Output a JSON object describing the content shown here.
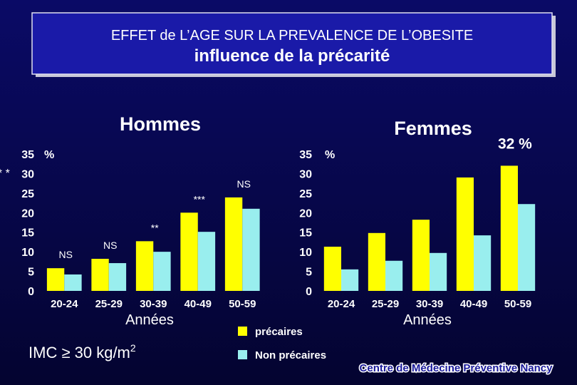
{
  "title": "EFFET de L’AGE SUR LA PREVALENCE DE L’OBESITE",
  "subtitle": "influence de la précarité",
  "criterion": {
    "text": "IMC ≥ 30 kg/m",
    "superscript": "2"
  },
  "source": "Centre de Médecine Préventive Nancy",
  "chart_data": [
    {
      "type": "bar",
      "title": "Hommes",
      "y_label": "%",
      "x_label": "Années",
      "categories": [
        "20-24",
        "25-29",
        "30-39",
        "40-49",
        "50-59"
      ],
      "series": [
        {
          "name": "précaires",
          "color": "#ffff00",
          "values": [
            5.8,
            8.2,
            12.7,
            20,
            23.9
          ]
        },
        {
          "name": "Non précaires",
          "color": "#99eeee",
          "values": [
            4.2,
            7.1,
            10,
            15.1,
            21
          ]
        }
      ],
      "significance": [
        "NS",
        "NS",
        "**",
        "***",
        "NS"
      ],
      "ylim": [
        0,
        35
      ],
      "yticks": [
        0,
        5,
        10,
        15,
        20,
        25,
        30,
        35
      ]
    },
    {
      "type": "bar",
      "title": "Femmes",
      "y_label": "%",
      "x_label": "Années",
      "categories": [
        "20-24",
        "25-29",
        "30-39",
        "40-49",
        "50-59"
      ],
      "series": [
        {
          "color": "#ffff00",
          "values": [
            11.3,
            14.8,
            18.2,
            29,
            32
          ],
          "value_labels": [
            null,
            null,
            null,
            null,
            "32 %"
          ]
        },
        {
          "color": "#99eeee",
          "values": [
            5.5,
            7.7,
            9.7,
            14.2,
            22.2
          ]
        }
      ],
      "annotation": "* * *",
      "ylim": [
        0,
        35
      ],
      "yticks": [
        0,
        5,
        10,
        15,
        20,
        25,
        30,
        35
      ]
    }
  ]
}
